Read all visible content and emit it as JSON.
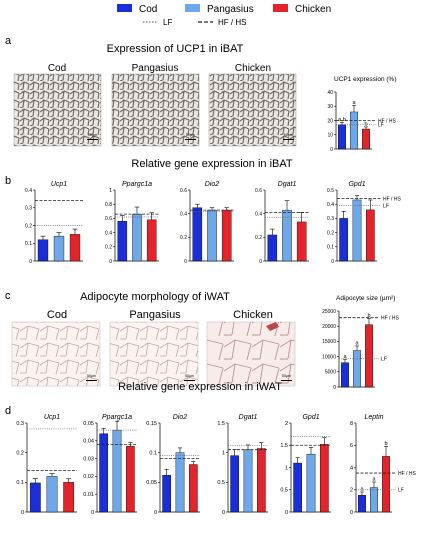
{
  "legend": {
    "items": [
      {
        "label": "Cod",
        "color": "#1a2ed9"
      },
      {
        "label": "Pangasius",
        "color": "#6fa8ea"
      },
      {
        "label": "Chicken",
        "color": "#e3242b"
      }
    ],
    "lines": [
      {
        "label": "LF",
        "style": "dotted"
      },
      {
        "label": "HF / HS",
        "style": "dashed"
      }
    ]
  },
  "panels": {
    "a": {
      "letter": "a",
      "title": "Expression of UCP1 in iBAT",
      "images": [
        "Cod",
        "Pangasius",
        "Chicken"
      ],
      "scale_bar": "50µm"
    },
    "b": {
      "letter": "b",
      "title": "Relative gene expression in iBAT"
    },
    "c": {
      "letter": "c",
      "title": "Adipocyte morphology of iWAT",
      "images": [
        "Cod",
        "Pangasius",
        "Chicken"
      ],
      "scale_bar": "50µm"
    },
    "d": {
      "letter": "d",
      "title": "Relative gene expression in iWAT"
    }
  },
  "chart_data": [
    {
      "id": "a-ucp1",
      "type": "bar",
      "title": "UCP1 expression (%)",
      "categories": [
        "Cod",
        "Pangasius",
        "Chicken"
      ],
      "values": [
        17,
        26,
        14
      ],
      "errors": [
        1.5,
        4.5,
        1.5
      ],
      "letters": [
        "a,b",
        "a",
        "b"
      ],
      "ylim": [
        0,
        40
      ],
      "yticks": [
        0,
        10,
        20,
        30,
        40
      ],
      "ref_lines": [
        {
          "label": "HF / HS",
          "value": 20,
          "style": "dashed"
        },
        {
          "label": "LF",
          "value": 17,
          "style": "dotted"
        }
      ]
    },
    {
      "id": "b-ucp1",
      "type": "bar",
      "title": "Ucp1",
      "categories": [
        "Cod",
        "Pangasius",
        "Chicken"
      ],
      "values": [
        0.12,
        0.14,
        0.15
      ],
      "errors": [
        0.02,
        0.02,
        0.03
      ],
      "ylim": [
        0,
        0.4
      ],
      "yticks": [
        0.0,
        0.1,
        0.2,
        0.3,
        0.4
      ],
      "ref_lines": [
        {
          "value": 0.34,
          "style": "dashed"
        },
        {
          "value": 0.2,
          "style": "dotted"
        }
      ]
    },
    {
      "id": "b-ppargc1a",
      "type": "bar",
      "title": "Ppargc1a",
      "categories": [
        "Cod",
        "Pangasius",
        "Chicken"
      ],
      "values": [
        0.56,
        0.66,
        0.58
      ],
      "errors": [
        0.08,
        0.1,
        0.1
      ],
      "ylim": [
        0,
        1.0
      ],
      "yticks": [
        0.0,
        0.2,
        0.4,
        0.6,
        0.8,
        1.0
      ],
      "ref_lines": [
        {
          "value": 0.66,
          "style": "dashed"
        },
        {
          "value": 0.62,
          "style": "dotted"
        }
      ]
    },
    {
      "id": "b-dio2",
      "type": "bar",
      "title": "Dio2",
      "categories": [
        "Cod",
        "Pangasius",
        "Chicken"
      ],
      "values": [
        0.45,
        0.43,
        0.43
      ],
      "errors": [
        0.03,
        0.02,
        0.02
      ],
      "ylim": [
        0,
        0.6
      ],
      "yticks": [
        0.0,
        0.2,
        0.4,
        0.6
      ],
      "ref_lines": [
        {
          "value": 0.43,
          "style": "dashed"
        },
        {
          "value": 0.42,
          "style": "dotted"
        }
      ]
    },
    {
      "id": "b-dgat1",
      "type": "bar",
      "title": "Dgat1",
      "categories": [
        "Cod",
        "Pangasius",
        "Chicken"
      ],
      "values": [
        0.22,
        0.43,
        0.33
      ],
      "errors": [
        0.05,
        0.08,
        0.08
      ],
      "ylim": [
        0,
        0.6
      ],
      "yticks": [
        0.0,
        0.2,
        0.4,
        0.6
      ],
      "ref_lines": [
        {
          "value": 0.41,
          "style": "dashed"
        },
        {
          "value": 0.37,
          "style": "dotted"
        }
      ]
    },
    {
      "id": "b-gpd1",
      "type": "bar",
      "title": "Gpd1",
      "categories": [
        "Cod",
        "Pangasius",
        "Chicken"
      ],
      "values": [
        0.3,
        0.43,
        0.36
      ],
      "errors": [
        0.05,
        0.03,
        0.07
      ],
      "ylim": [
        0,
        0.5
      ],
      "yticks": [
        0.0,
        0.1,
        0.2,
        0.3,
        0.4,
        0.5
      ],
      "ref_lines": [
        {
          "label": "HF / HS",
          "value": 0.44,
          "style": "dashed"
        },
        {
          "label": "LF",
          "value": 0.39,
          "style": "dotted"
        }
      ]
    },
    {
      "id": "c-size",
      "type": "bar",
      "title": "Adipocyte size (µm²)",
      "categories": [
        "Cod",
        "Pangasius",
        "Chicken"
      ],
      "values": [
        8000,
        12000,
        20500
      ],
      "errors": [
        1000,
        1500,
        2000
      ],
      "letters": [
        "a",
        "a",
        "b"
      ],
      "ylim": [
        0,
        25000
      ],
      "yticks": [
        0,
        5000,
        10000,
        15000,
        20000,
        25000
      ],
      "ref_lines": [
        {
          "label": "HF / HS",
          "value": 22800,
          "style": "dashed"
        },
        {
          "label": "LF",
          "value": 9300,
          "style": "dotted"
        }
      ]
    },
    {
      "id": "d-ucp1",
      "type": "bar",
      "title": "Ucp1",
      "categories": [
        "Cod",
        "Pangasius",
        "Chicken"
      ],
      "values": [
        0.098,
        0.12,
        0.1
      ],
      "errors": [
        0.015,
        0.01,
        0.012
      ],
      "ylim": [
        0,
        0.3
      ],
      "yticks": [
        0.0,
        0.1,
        0.2,
        0.3
      ],
      "ref_lines": [
        {
          "value": 0.28,
          "style": "dotted"
        },
        {
          "value": 0.14,
          "style": "dashed"
        }
      ]
    },
    {
      "id": "d-ppargc1a",
      "type": "bar",
      "title": "Ppargc1a",
      "categories": [
        "Cod",
        "Pangasius",
        "Chicken"
      ],
      "values": [
        0.044,
        0.046,
        0.037
      ],
      "errors": [
        0.003,
        0.005,
        0.002
      ],
      "ylim": [
        0,
        0.05
      ],
      "yticks": [
        0.0,
        0.01,
        0.02,
        0.03,
        0.04,
        0.05
      ],
      "ref_lines": [
        {
          "value": 0.046,
          "style": "dotted"
        },
        {
          "value": 0.038,
          "style": "dashed"
        }
      ]
    },
    {
      "id": "d-dio2",
      "type": "bar",
      "title": "Dio2",
      "categories": [
        "Cod",
        "Pangasius",
        "Chicken"
      ],
      "values": [
        0.062,
        0.1,
        0.08
      ],
      "errors": [
        0.01,
        0.008,
        0.005
      ],
      "ylim": [
        0,
        0.15
      ],
      "yticks": [
        0.0,
        0.05,
        0.1,
        0.15
      ],
      "ref_lines": [
        {
          "value": 0.095,
          "style": "dotted"
        },
        {
          "value": 0.09,
          "style": "dashed"
        }
      ]
    },
    {
      "id": "d-dgat1",
      "type": "bar",
      "title": "Dgat1",
      "categories": [
        "Cod",
        "Pangasius",
        "Chicken"
      ],
      "values": [
        0.95,
        1.05,
        1.07
      ],
      "errors": [
        0.1,
        0.08,
        0.1
      ],
      "ylim": [
        0,
        1.5
      ],
      "yticks": [
        0.0,
        0.5,
        1.0,
        1.5
      ],
      "ref_lines": [
        {
          "value": 1.12,
          "style": "dotted"
        },
        {
          "value": 1.05,
          "style": "dashed"
        }
      ]
    },
    {
      "id": "d-gpd1",
      "type": "bar",
      "title": "Gpd1",
      "categories": [
        "Cod",
        "Pangasius",
        "Chicken"
      ],
      "values": [
        1.1,
        1.3,
        1.52
      ],
      "errors": [
        0.12,
        0.15,
        0.15
      ],
      "ylim": [
        0,
        2.0
      ],
      "yticks": [
        0.0,
        0.5,
        1.0,
        1.5,
        2.0
      ],
      "ref_lines": [
        {
          "value": 1.7,
          "style": "dotted"
        },
        {
          "value": 1.5,
          "style": "dashed"
        }
      ]
    },
    {
      "id": "d-leptin",
      "type": "bar",
      "title": "Leptin",
      "categories": [
        "Cod",
        "Pangasius",
        "Chicken"
      ],
      "values": [
        1.5,
        2.2,
        5.0
      ],
      "errors": [
        0.3,
        0.5,
        0.9
      ],
      "letters": [
        "a",
        "a",
        "b"
      ],
      "ylim": [
        0,
        8
      ],
      "yticks": [
        0,
        2,
        4,
        6,
        8
      ],
      "ref_lines": [
        {
          "label": "HF / HS",
          "value": 3.5,
          "style": "dashed"
        },
        {
          "label": "LF",
          "value": 2.0,
          "style": "dotted"
        }
      ]
    }
  ]
}
